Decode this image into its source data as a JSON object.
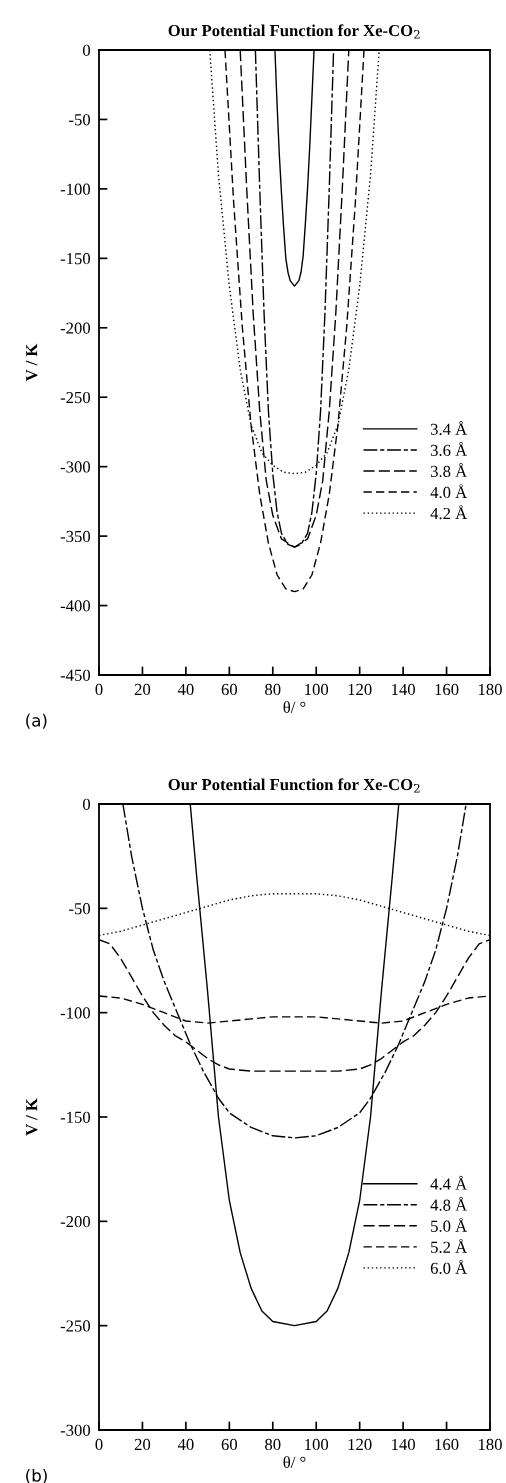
{
  "chart_data": [
    {
      "type": "line",
      "title": "Our Potential Function for Xe-CO$_{2}$",
      "xlabel": "θ/ °",
      "ylabel": "V / K",
      "annotations": [
        "(a)"
      ],
      "xlim": [
        0,
        180
      ],
      "ylim": [
        -450,
        0
      ],
      "xticks": [
        0,
        20,
        40,
        60,
        80,
        100,
        120,
        140,
        160,
        180
      ],
      "yticks": [
        0,
        -50,
        -100,
        -150,
        -200,
        -250,
        -300,
        -350,
        -400,
        -450
      ],
      "grid": false,
      "legend": "lower right",
      "marker": "none",
      "series": [
        {
          "name": "3.4 Å",
          "color": "#000000",
          "line_style": "solid",
          "x": [
            81,
            82,
            83,
            84,
            85,
            86,
            87,
            88,
            90,
            92,
            93,
            94,
            95,
            96,
            97,
            98,
            99
          ],
          "values": [
            0,
            -40,
            -75,
            -103,
            -128,
            -150,
            -160,
            -166,
            -170,
            -166,
            -160,
            -148,
            -125,
            -100,
            -70,
            -35,
            0
          ]
        },
        {
          "name": "3.6 Å",
          "color": "#000000",
          "line_style": "dashed",
          "x": [
            72,
            74,
            76,
            78,
            80,
            82,
            84,
            87,
            90,
            93,
            96,
            98,
            100,
            102,
            104,
            106,
            108
          ],
          "values": [
            0,
            -100,
            -190,
            -260,
            -305,
            -333,
            -348,
            -356,
            -358,
            -356,
            -348,
            -333,
            -305,
            -260,
            -190,
            -100,
            0
          ]
        },
        {
          "name": "3.8 Å",
          "color": "#000000",
          "line_style": "dashed",
          "x": [
            65,
            68,
            71,
            74,
            77,
            80,
            84,
            90,
            96,
            100,
            103,
            106,
            109,
            112,
            115
          ],
          "values": [
            0,
            -100,
            -190,
            -260,
            -310,
            -335,
            -352,
            -358,
            -352,
            -335,
            -310,
            -260,
            -190,
            -100,
            0
          ]
        },
        {
          "name": "4.0 Å",
          "color": "#000000",
          "line_style": "dashed",
          "x": [
            58,
            62,
            66,
            70,
            74,
            78,
            82,
            86,
            90,
            94,
            98,
            102,
            106,
            110,
            114,
            118,
            122
          ],
          "values": [
            0,
            -110,
            -200,
            -270,
            -320,
            -355,
            -378,
            -388,
            -390,
            -388,
            -378,
            -355,
            -320,
            -270,
            -200,
            -110,
            0
          ]
        },
        {
          "name": "4.2 Å",
          "color": "#000000",
          "line_style": "dotted",
          "x": [
            51,
            55,
            60,
            65,
            70,
            75,
            80,
            85,
            90,
            95,
            100,
            105,
            110,
            115,
            120,
            125,
            129
          ],
          "values": [
            0,
            -90,
            -170,
            -230,
            -270,
            -290,
            -299,
            -304,
            -305,
            -304,
            -299,
            -290,
            -270,
            -230,
            -170,
            -90,
            0
          ]
        }
      ]
    },
    {
      "type": "line",
      "title": "Our Potential Function for Xe-CO$_{2}$",
      "xlabel": "θ/ °",
      "ylabel": "V / K",
      "annotations": [
        "(b)"
      ],
      "xlim": [
        0,
        180
      ],
      "ylim": [
        -300,
        0
      ],
      "xticks": [
        0,
        20,
        40,
        60,
        80,
        100,
        120,
        140,
        160,
        180
      ],
      "yticks": [
        0,
        -50,
        -100,
        -150,
        -200,
        -250,
        -300
      ],
      "grid": false,
      "legend": "lower right",
      "marker": "none",
      "series": [
        {
          "name": "4.4 Å",
          "color": "#000000",
          "line_style": "solid",
          "x": [
            42,
            45,
            50,
            55,
            60,
            65,
            70,
            75,
            80,
            90,
            100,
            105,
            110,
            115,
            120,
            125,
            130,
            135,
            138
          ],
          "values": [
            0,
            -35,
            -90,
            -150,
            -190,
            -215,
            -232,
            -243,
            -248,
            -250,
            -248,
            -243,
            -232,
            -215,
            -190,
            -150,
            -90,
            -35,
            0
          ]
        },
        {
          "name": "4.8 Å",
          "color": "#000000",
          "line_style": "dashed",
          "x": [
            11,
            15,
            20,
            25,
            30,
            36,
            42,
            48,
            55,
            60,
            70,
            80,
            90,
            100,
            110,
            120,
            125,
            132,
            138,
            144,
            150,
            155,
            160,
            165,
            169
          ],
          "values": [
            0,
            -25,
            -50,
            -70,
            -85,
            -100,
            -115,
            -128,
            -141,
            -148,
            -155,
            -159,
            -160,
            -159,
            -155,
            -148,
            -141,
            -128,
            -115,
            -100,
            -85,
            -70,
            -50,
            -25,
            0
          ]
        },
        {
          "name": "5.0 Å",
          "color": "#000000",
          "line_style": "dashed",
          "x": [
            0,
            5,
            10,
            15,
            20,
            25,
            30,
            35,
            40,
            45,
            50,
            55,
            60,
            70,
            80,
            90,
            100,
            110,
            120,
            125,
            130,
            135,
            140,
            145,
            150,
            155,
            160,
            165,
            170,
            175,
            180
          ],
          "values": [
            -65,
            -67,
            -74,
            -83,
            -92,
            -100,
            -106,
            -111,
            -114,
            -118,
            -122,
            -125,
            -127,
            -128,
            -128,
            -128,
            -128,
            -128,
            -127,
            -125,
            -122,
            -118,
            -114,
            -111,
            -106,
            -100,
            -92,
            -83,
            -74,
            -67,
            -65
          ]
        },
        {
          "name": "5.2 Å",
          "color": "#000000",
          "line_style": "dashed",
          "x": [
            0,
            10,
            20,
            30,
            40,
            50,
            60,
            70,
            80,
            90,
            100,
            110,
            120,
            130,
            140,
            150,
            160,
            170,
            180
          ],
          "values": [
            -92,
            -93,
            -96,
            -100,
            -104,
            -105,
            -104,
            -103,
            -102,
            -102,
            -102,
            -103,
            -104,
            -105,
            -104,
            -100,
            -96,
            -93,
            -92
          ]
        },
        {
          "name": "6.0 Å",
          "color": "#000000",
          "line_style": "dotted",
          "x": [
            0,
            10,
            20,
            30,
            40,
            50,
            60,
            70,
            80,
            90,
            100,
            110,
            120,
            130,
            140,
            150,
            160,
            170,
            180
          ],
          "values": [
            -63,
            -61,
            -58,
            -55,
            -52,
            -49,
            -46,
            -44,
            -43,
            -43,
            -43,
            -44,
            -46,
            -49,
            -52,
            -55,
            -58,
            -61,
            -63
          ]
        }
      ]
    }
  ]
}
